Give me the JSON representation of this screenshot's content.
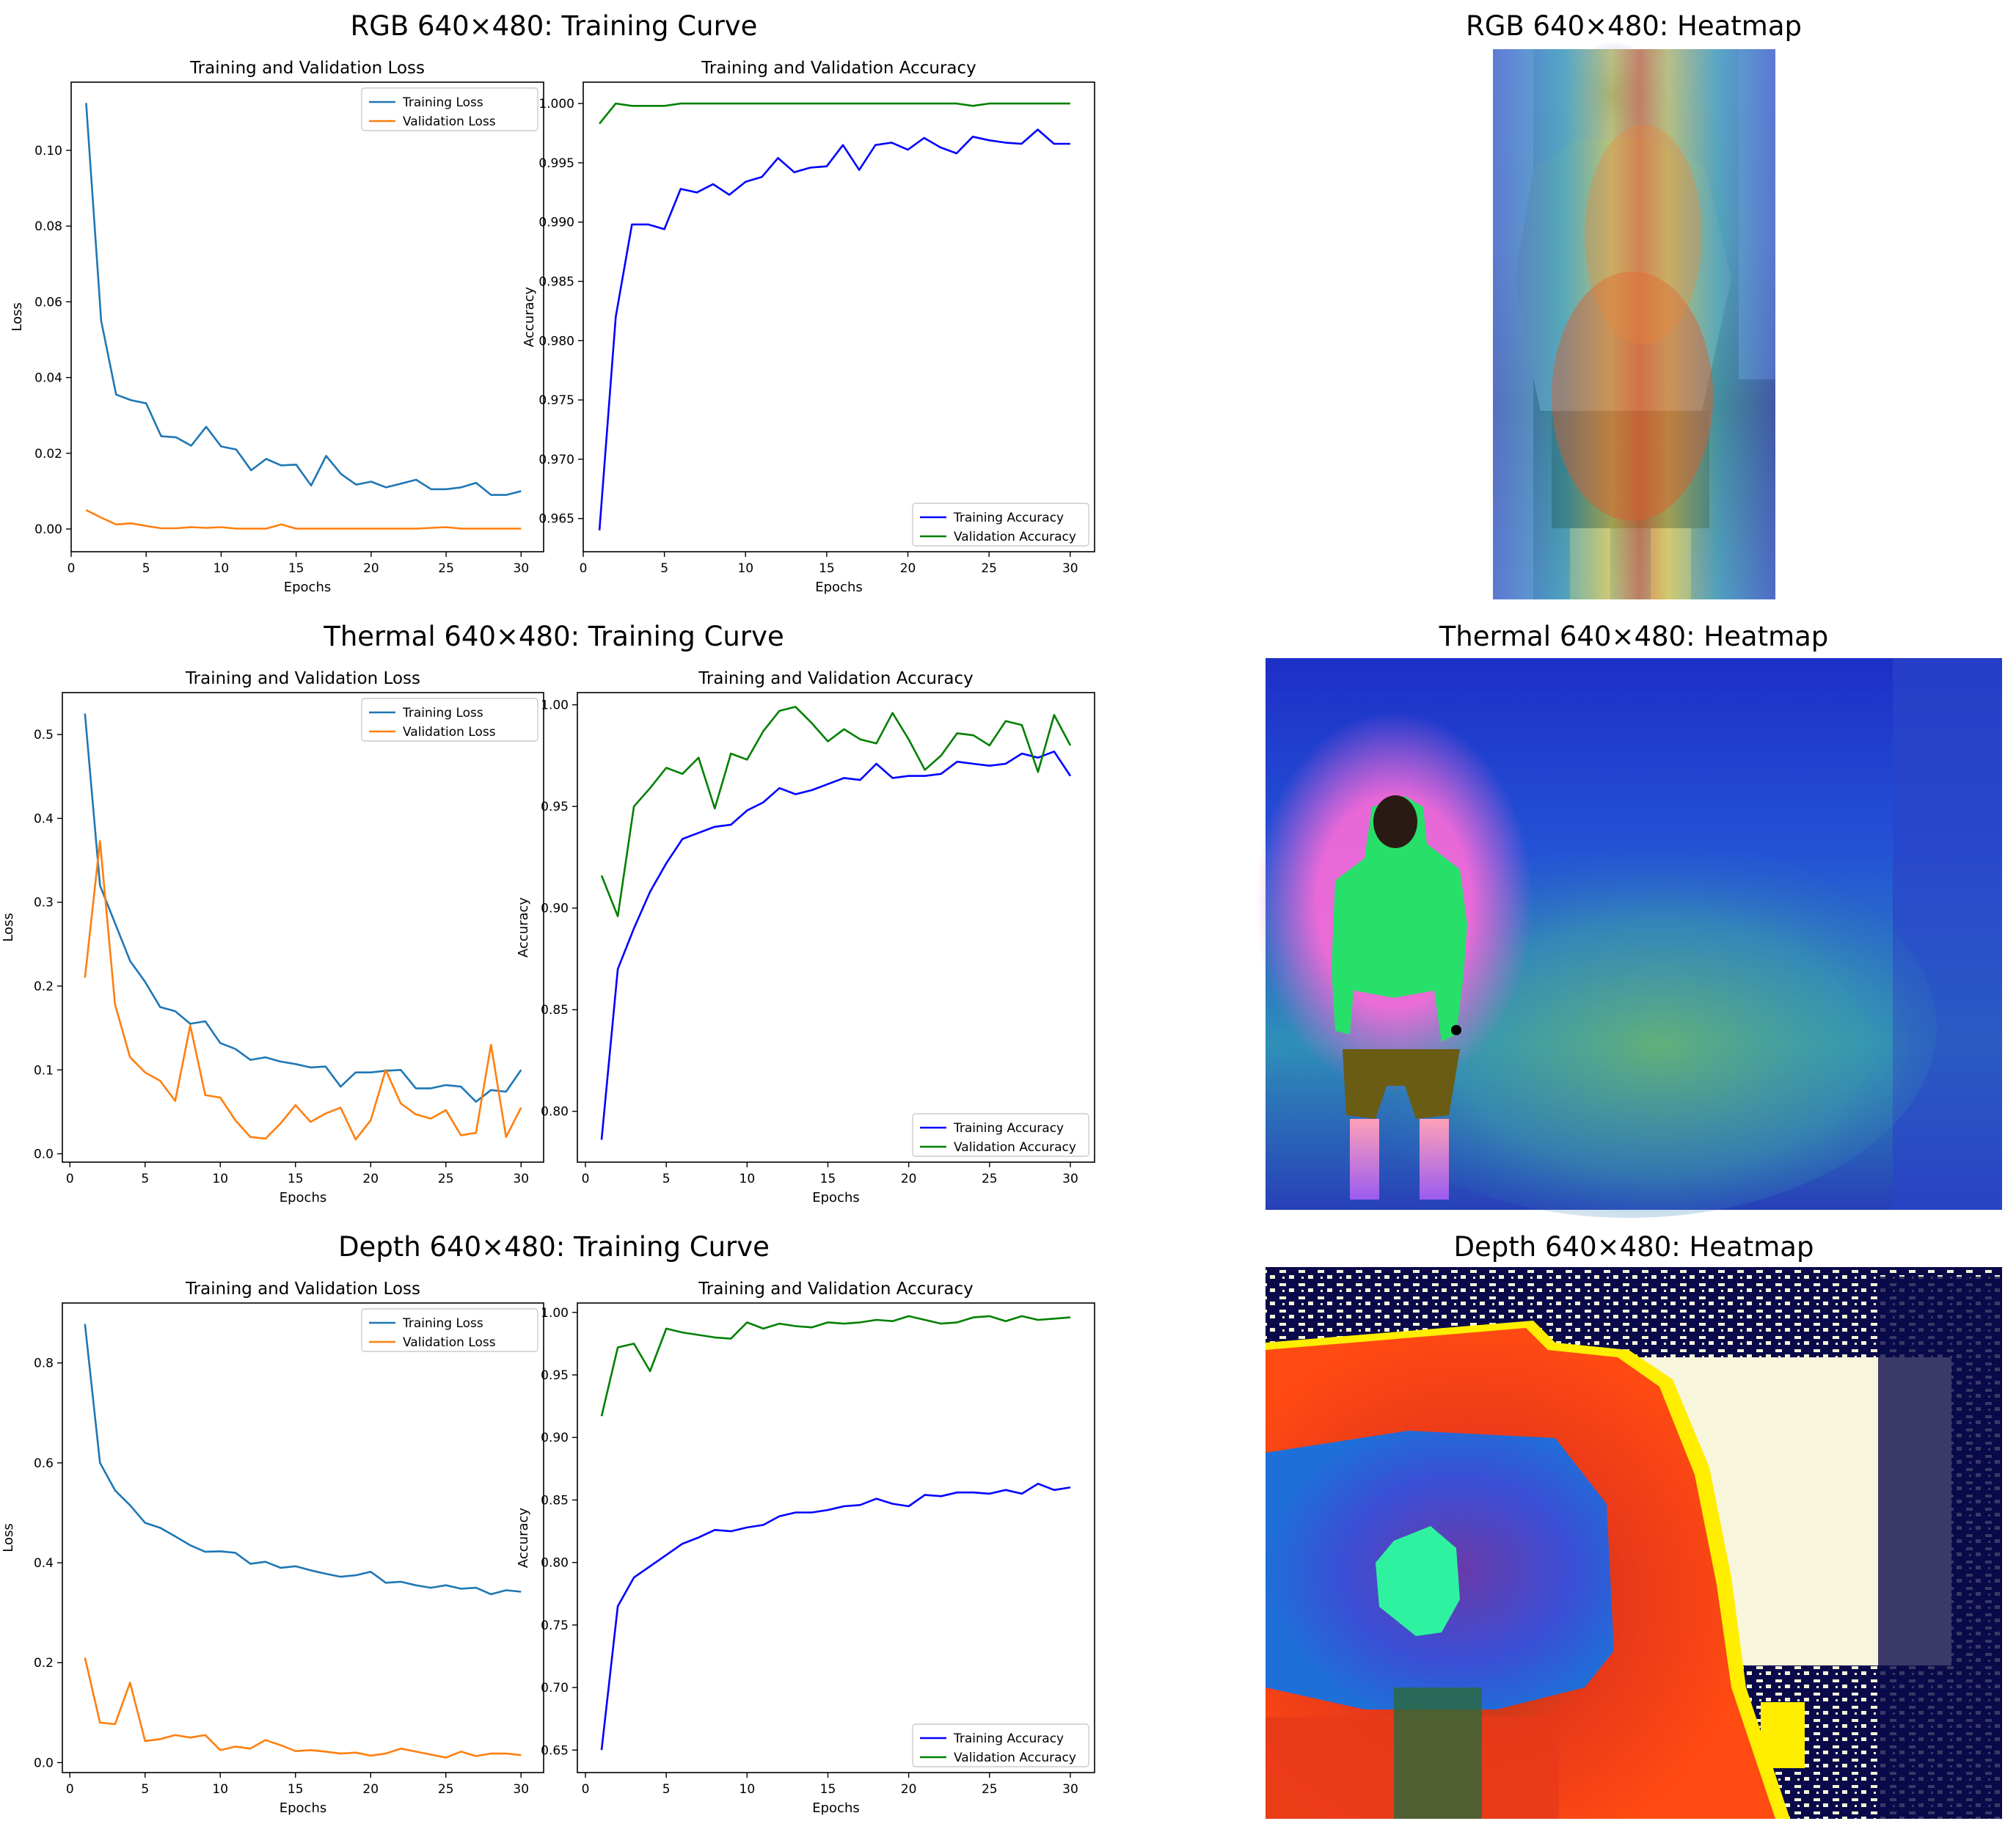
{
  "rows": [
    {
      "curve_title": "RGB 640×480: Training Curve",
      "heatmap_title": "RGB 640×480: Heatmap",
      "heatmap_kind": "rgb-person-gradcam"
    },
    {
      "curve_title": "Thermal 640×480: Training Curve",
      "heatmap_title": "Thermal 640×480: Heatmap",
      "heatmap_kind": "thermal-gradcam"
    },
    {
      "curve_title": "Depth 640×480: Training Curve",
      "heatmap_title": "Depth 640×480: Heatmap",
      "heatmap_kind": "depth-colormap"
    }
  ],
  "colors": {
    "training_loss": "#1f77b4",
    "validation_loss": "#ff7f0e",
    "training_accuracy": "#0000ff",
    "validation_accuracy": "#008000"
  },
  "chart_data": [
    {
      "id": "rgb-loss",
      "type": "line",
      "title": "Training and Validation Loss",
      "xlabel": "Epochs",
      "ylabel": "Loss",
      "xlim": [
        0,
        31.5
      ],
      "ylim": [
        -0.006,
        0.118
      ],
      "xticks": [
        0,
        5,
        10,
        15,
        20,
        25,
        30
      ],
      "yticks": [
        0.0,
        0.02,
        0.04,
        0.06,
        0.08,
        0.1
      ],
      "ytick_labels": [
        "0.00",
        "0.02",
        "0.04",
        "0.06",
        "0.08",
        "0.10"
      ],
      "legend": "top-right",
      "x": [
        1,
        2,
        3,
        4,
        5,
        6,
        7,
        8,
        9,
        10,
        11,
        12,
        13,
        14,
        15,
        16,
        17,
        18,
        19,
        20,
        21,
        22,
        23,
        24,
        25,
        26,
        27,
        28,
        29,
        30
      ],
      "series": [
        {
          "name": "Training Loss",
          "color_key": "training_loss",
          "values": [
            0.1125,
            0.055,
            0.0355,
            0.034,
            0.0332,
            0.0245,
            0.0242,
            0.022,
            0.027,
            0.0218,
            0.021,
            0.0155,
            0.0185,
            0.0168,
            0.017,
            0.0115,
            0.0193,
            0.0145,
            0.0117,
            0.0125,
            0.011,
            0.012,
            0.013,
            0.0105,
            0.0105,
            0.011,
            0.0122,
            0.009,
            0.009,
            0.01
          ]
        },
        {
          "name": "Validation Loss",
          "color_key": "validation_loss",
          "values": [
            0.005,
            0.003,
            0.0012,
            0.0015,
            0.0008,
            0.0002,
            0.0002,
            0.0005,
            0.0003,
            0.0005,
            0.0001,
            0.0001,
            0.0001,
            0.0012,
            0.0001,
            0.0001,
            0.0001,
            0.0001,
            0.0001,
            0.0001,
            0.0001,
            0.0001,
            0.0001,
            0.0003,
            0.0005,
            0.0001,
            0.0001,
            0.0001,
            0.0001,
            0.0001
          ]
        }
      ]
    },
    {
      "id": "rgb-acc",
      "type": "line",
      "title": "Training and Validation Accuracy",
      "xlabel": "Epochs",
      "ylabel": "Accuracy",
      "xlim": [
        0,
        31.5
      ],
      "ylim": [
        0.9622,
        1.0018
      ],
      "xticks": [
        0,
        5,
        10,
        15,
        20,
        25,
        30
      ],
      "yticks": [
        0.965,
        0.97,
        0.975,
        0.98,
        0.985,
        0.99,
        0.995,
        1.0
      ],
      "ytick_labels": [
        "0.965",
        "0.970",
        "0.975",
        "0.980",
        "0.985",
        "0.990",
        "0.995",
        "1.000"
      ],
      "legend": "bottom-right",
      "x": [
        1,
        2,
        3,
        4,
        5,
        6,
        7,
        8,
        9,
        10,
        11,
        12,
        13,
        14,
        15,
        16,
        17,
        18,
        19,
        20,
        21,
        22,
        23,
        24,
        25,
        26,
        27,
        28,
        29,
        30
      ],
      "series": [
        {
          "name": "Training Accuracy",
          "color_key": "training_accuracy",
          "values": [
            0.964,
            0.982,
            0.9898,
            0.9898,
            0.9894,
            0.9928,
            0.9925,
            0.9932,
            0.9923,
            0.9934,
            0.9938,
            0.9954,
            0.9942,
            0.9946,
            0.9947,
            0.9965,
            0.9944,
            0.9965,
            0.9967,
            0.9961,
            0.9971,
            0.9963,
            0.9958,
            0.9972,
            0.9969,
            0.9967,
            0.9966,
            0.9978,
            0.9966,
            0.9966
          ]
        },
        {
          "name": "Validation Accuracy",
          "color_key": "validation_accuracy",
          "values": [
            0.9983,
            1.0,
            0.9998,
            0.9998,
            0.9998,
            1.0,
            1.0,
            1.0,
            1.0,
            1.0,
            1.0,
            1.0,
            1.0,
            1.0,
            1.0,
            1.0,
            1.0,
            1.0,
            1.0,
            1.0,
            1.0,
            1.0,
            1.0,
            0.9998,
            1.0,
            1.0,
            1.0,
            1.0,
            1.0,
            1.0
          ]
        }
      ]
    },
    {
      "id": "thermal-loss",
      "type": "line",
      "title": "Training and Validation Loss",
      "xlabel": "Epochs",
      "ylabel": "Loss",
      "xlim": [
        -0.5,
        31.5
      ],
      "ylim": [
        -0.01,
        0.55
      ],
      "xticks": [
        0,
        5,
        10,
        15,
        20,
        25,
        30
      ],
      "yticks": [
        0.0,
        0.1,
        0.2,
        0.3,
        0.4,
        0.5
      ],
      "ytick_labels": [
        "0.0",
        "0.1",
        "0.2",
        "0.3",
        "0.4",
        "0.5"
      ],
      "legend": "top-right",
      "x": [
        1,
        2,
        3,
        4,
        5,
        6,
        7,
        8,
        9,
        10,
        11,
        12,
        13,
        14,
        15,
        16,
        17,
        18,
        19,
        20,
        21,
        22,
        23,
        24,
        25,
        26,
        27,
        28,
        29,
        30
      ],
      "series": [
        {
          "name": "Training Loss",
          "color_key": "training_loss",
          "values": [
            0.525,
            0.32,
            0.275,
            0.23,
            0.205,
            0.175,
            0.17,
            0.155,
            0.158,
            0.132,
            0.125,
            0.112,
            0.115,
            0.11,
            0.107,
            0.103,
            0.104,
            0.08,
            0.097,
            0.097,
            0.099,
            0.1,
            0.078,
            0.078,
            0.082,
            0.08,
            0.062,
            0.076,
            0.074,
            0.1
          ]
        },
        {
          "name": "Validation Loss",
          "color_key": "validation_loss",
          "values": [
            0.21,
            0.373,
            0.178,
            0.115,
            0.097,
            0.087,
            0.063,
            0.153,
            0.07,
            0.067,
            0.04,
            0.02,
            0.018,
            0.036,
            0.058,
            0.038,
            0.048,
            0.055,
            0.017,
            0.04,
            0.1,
            0.06,
            0.047,
            0.042,
            0.052,
            0.022,
            0.025,
            0.13,
            0.02,
            0.055
          ]
        }
      ]
    },
    {
      "id": "thermal-acc",
      "type": "line",
      "title": "Training and Validation Accuracy",
      "xlabel": "Epochs",
      "ylabel": "Accuracy",
      "xlim": [
        -0.5,
        31.5
      ],
      "ylim": [
        0.775,
        1.006
      ],
      "xticks": [
        0,
        5,
        10,
        15,
        20,
        25,
        30
      ],
      "yticks": [
        0.8,
        0.85,
        0.9,
        0.95,
        1.0
      ],
      "ytick_labels": [
        "0.80",
        "0.85",
        "0.90",
        "0.95",
        "1.00"
      ],
      "legend": "bottom-right",
      "x": [
        1,
        2,
        3,
        4,
        5,
        6,
        7,
        8,
        9,
        10,
        11,
        12,
        13,
        14,
        15,
        16,
        17,
        18,
        19,
        20,
        21,
        22,
        23,
        24,
        25,
        26,
        27,
        28,
        29,
        30
      ],
      "series": [
        {
          "name": "Training Accuracy",
          "color_key": "training_accuracy",
          "values": [
            0.786,
            0.87,
            0.89,
            0.908,
            0.922,
            0.934,
            0.937,
            0.94,
            0.941,
            0.948,
            0.952,
            0.959,
            0.956,
            0.958,
            0.961,
            0.964,
            0.963,
            0.971,
            0.964,
            0.965,
            0.965,
            0.966,
            0.972,
            0.971,
            0.97,
            0.971,
            0.976,
            0.974,
            0.977,
            0.965
          ]
        },
        {
          "name": "Validation Accuracy",
          "color_key": "validation_accuracy",
          "values": [
            0.916,
            0.896,
            0.95,
            0.959,
            0.969,
            0.966,
            0.974,
            0.949,
            0.976,
            0.973,
            0.987,
            0.997,
            0.999,
            0.991,
            0.982,
            0.988,
            0.983,
            0.981,
            0.996,
            0.983,
            0.968,
            0.975,
            0.986,
            0.985,
            0.98,
            0.992,
            0.99,
            0.967,
            0.995,
            0.98
          ]
        }
      ]
    },
    {
      "id": "depth-loss",
      "type": "line",
      "title": "Training and Validation Loss",
      "xlabel": "Epochs",
      "ylabel": "Loss",
      "xlim": [
        -0.5,
        31.5
      ],
      "ylim": [
        -0.02,
        0.92
      ],
      "xticks": [
        0,
        5,
        10,
        15,
        20,
        25,
        30
      ],
      "yticks": [
        0.0,
        0.2,
        0.4,
        0.6,
        0.8
      ],
      "ytick_labels": [
        "0.0",
        "0.2",
        "0.4",
        "0.6",
        "0.8"
      ],
      "legend": "top-right",
      "x": [
        1,
        2,
        3,
        4,
        5,
        6,
        7,
        8,
        9,
        10,
        11,
        12,
        13,
        14,
        15,
        16,
        17,
        18,
        19,
        20,
        21,
        22,
        23,
        24,
        25,
        26,
        27,
        28,
        29,
        30
      ],
      "series": [
        {
          "name": "Training Loss",
          "color_key": "training_loss",
          "values": [
            0.878,
            0.6,
            0.545,
            0.515,
            0.48,
            0.47,
            0.453,
            0.435,
            0.422,
            0.423,
            0.42,
            0.398,
            0.402,
            0.39,
            0.393,
            0.385,
            0.378,
            0.372,
            0.375,
            0.382,
            0.36,
            0.362,
            0.355,
            0.35,
            0.355,
            0.348,
            0.35,
            0.337,
            0.345,
            0.342
          ]
        },
        {
          "name": "Validation Loss",
          "color_key": "validation_loss",
          "values": [
            0.21,
            0.08,
            0.077,
            0.16,
            0.043,
            0.047,
            0.055,
            0.05,
            0.055,
            0.025,
            0.032,
            0.028,
            0.045,
            0.035,
            0.023,
            0.025,
            0.022,
            0.018,
            0.02,
            0.014,
            0.018,
            0.028,
            0.022,
            0.016,
            0.01,
            0.022,
            0.013,
            0.018,
            0.018,
            0.015
          ]
        }
      ]
    },
    {
      "id": "depth-acc",
      "type": "line",
      "title": "Training and Validation Accuracy",
      "xlabel": "Epochs",
      "ylabel": "Accuracy",
      "xlim": [
        -0.5,
        31.5
      ],
      "ylim": [
        0.632,
        1.0075
      ],
      "xticks": [
        0,
        5,
        10,
        15,
        20,
        25,
        30
      ],
      "yticks": [
        0.65,
        0.7,
        0.75,
        0.8,
        0.85,
        0.9,
        0.95,
        1.0
      ],
      "ytick_labels": [
        "0.65",
        "0.70",
        "0.75",
        "0.80",
        "0.85",
        "0.90",
        "0.95",
        "1.00"
      ],
      "legend": "bottom-right",
      "x": [
        1,
        2,
        3,
        4,
        5,
        6,
        7,
        8,
        9,
        10,
        11,
        12,
        13,
        14,
        15,
        16,
        17,
        18,
        19,
        20,
        21,
        22,
        23,
        24,
        25,
        26,
        27,
        28,
        29,
        30
      ],
      "series": [
        {
          "name": "Training Accuracy",
          "color_key": "training_accuracy",
          "values": [
            0.65,
            0.765,
            0.788,
            0.797,
            0.806,
            0.815,
            0.82,
            0.826,
            0.825,
            0.828,
            0.83,
            0.837,
            0.84,
            0.84,
            0.842,
            0.845,
            0.846,
            0.851,
            0.847,
            0.845,
            0.854,
            0.853,
            0.856,
            0.856,
            0.855,
            0.858,
            0.855,
            0.863,
            0.858,
            0.86
          ]
        },
        {
          "name": "Validation Accuracy",
          "color_key": "validation_accuracy",
          "values": [
            0.917,
            0.972,
            0.975,
            0.953,
            0.987,
            0.984,
            0.982,
            0.98,
            0.979,
            0.992,
            0.987,
            0.991,
            0.989,
            0.988,
            0.992,
            0.991,
            0.992,
            0.994,
            0.993,
            0.997,
            0.994,
            0.991,
            0.992,
            0.996,
            0.997,
            0.993,
            0.997,
            0.994,
            0.995,
            0.996
          ]
        }
      ]
    }
  ]
}
